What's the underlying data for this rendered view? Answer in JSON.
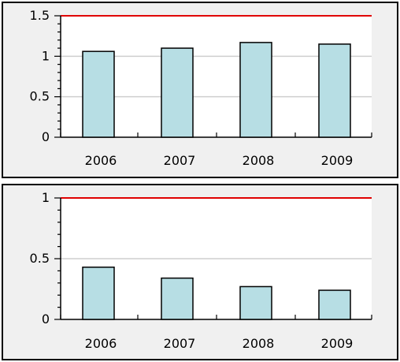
{
  "chart_data": [
    {
      "type": "bar",
      "categories": [
        "2006",
        "2007",
        "2008",
        "2009"
      ],
      "values": [
        1.06,
        1.1,
        1.17,
        1.15
      ],
      "ylim": [
        0,
        1.5
      ],
      "y_ticks": [
        "0",
        "0.5",
        "1",
        "1.5"
      ],
      "y_tick_values": [
        0,
        0.5,
        1,
        1.5
      ],
      "reference_line": 1.5,
      "grid": true,
      "colors": {
        "bar": "#b7dee4",
        "bar_outline": "#000000",
        "reference_line": "#e00000",
        "grid": "#cfcfcf",
        "plot_bg": "#ffffff"
      }
    },
    {
      "type": "bar",
      "categories": [
        "2006",
        "2007",
        "2008",
        "2009"
      ],
      "values": [
        0.43,
        0.34,
        0.27,
        0.24
      ],
      "ylim": [
        0,
        1
      ],
      "y_ticks": [
        "0",
        "0.5",
        "1"
      ],
      "y_tick_values": [
        0,
        0.5,
        1
      ],
      "reference_line": 1,
      "grid": true,
      "colors": {
        "bar": "#b7dee4",
        "bar_outline": "#000000",
        "reference_line": "#e00000",
        "grid": "#cfcfcf",
        "plot_bg": "#ffffff"
      }
    }
  ]
}
